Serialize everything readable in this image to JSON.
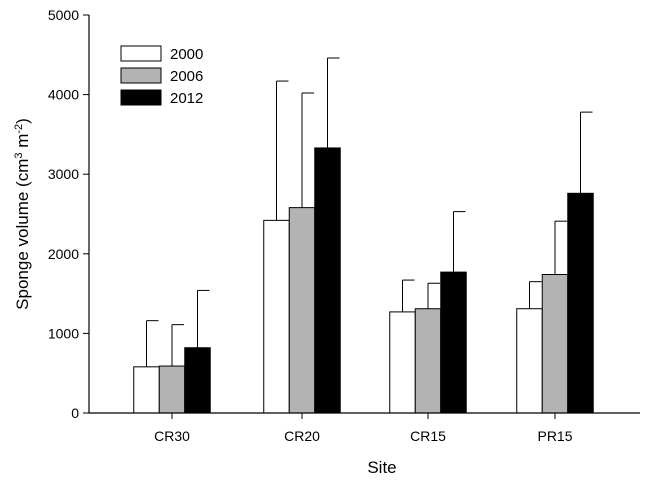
{
  "chart_data": {
    "type": "bar",
    "xlabel": "Site",
    "ylabel_main": "Sponge volume (cm",
    "ylabel_sup1": "3",
    "ylabel_mid": " m",
    "ylabel_sup2": "-2",
    "ylabel_end": ")",
    "categories": [
      "CR30",
      "CR20",
      "CR15",
      "PR15"
    ],
    "ylim": [
      0,
      5000
    ],
    "yticks": [
      0,
      1000,
      2000,
      3000,
      4000,
      5000
    ],
    "ytick_labels": [
      "0",
      "1000",
      "2000",
      "3000",
      "4000",
      "5000"
    ],
    "error_bars": "upper, one-sided",
    "legend_position": "top-left",
    "series": [
      {
        "name": "2000",
        "color": "#ffffff",
        "values": [
          580,
          2420,
          1270,
          1310
        ],
        "errors_upper": [
          1160,
          4170,
          1670,
          1650
        ]
      },
      {
        "name": "2006",
        "color": "#b3b3b3",
        "values": [
          590,
          2580,
          1310,
          1740
        ],
        "errors_upper": [
          1110,
          4020,
          1630,
          2410
        ]
      },
      {
        "name": "2012",
        "color": "#000000",
        "values": [
          820,
          3330,
          1770,
          2760
        ],
        "errors_upper": [
          1540,
          4460,
          2530,
          3780
        ]
      }
    ]
  }
}
